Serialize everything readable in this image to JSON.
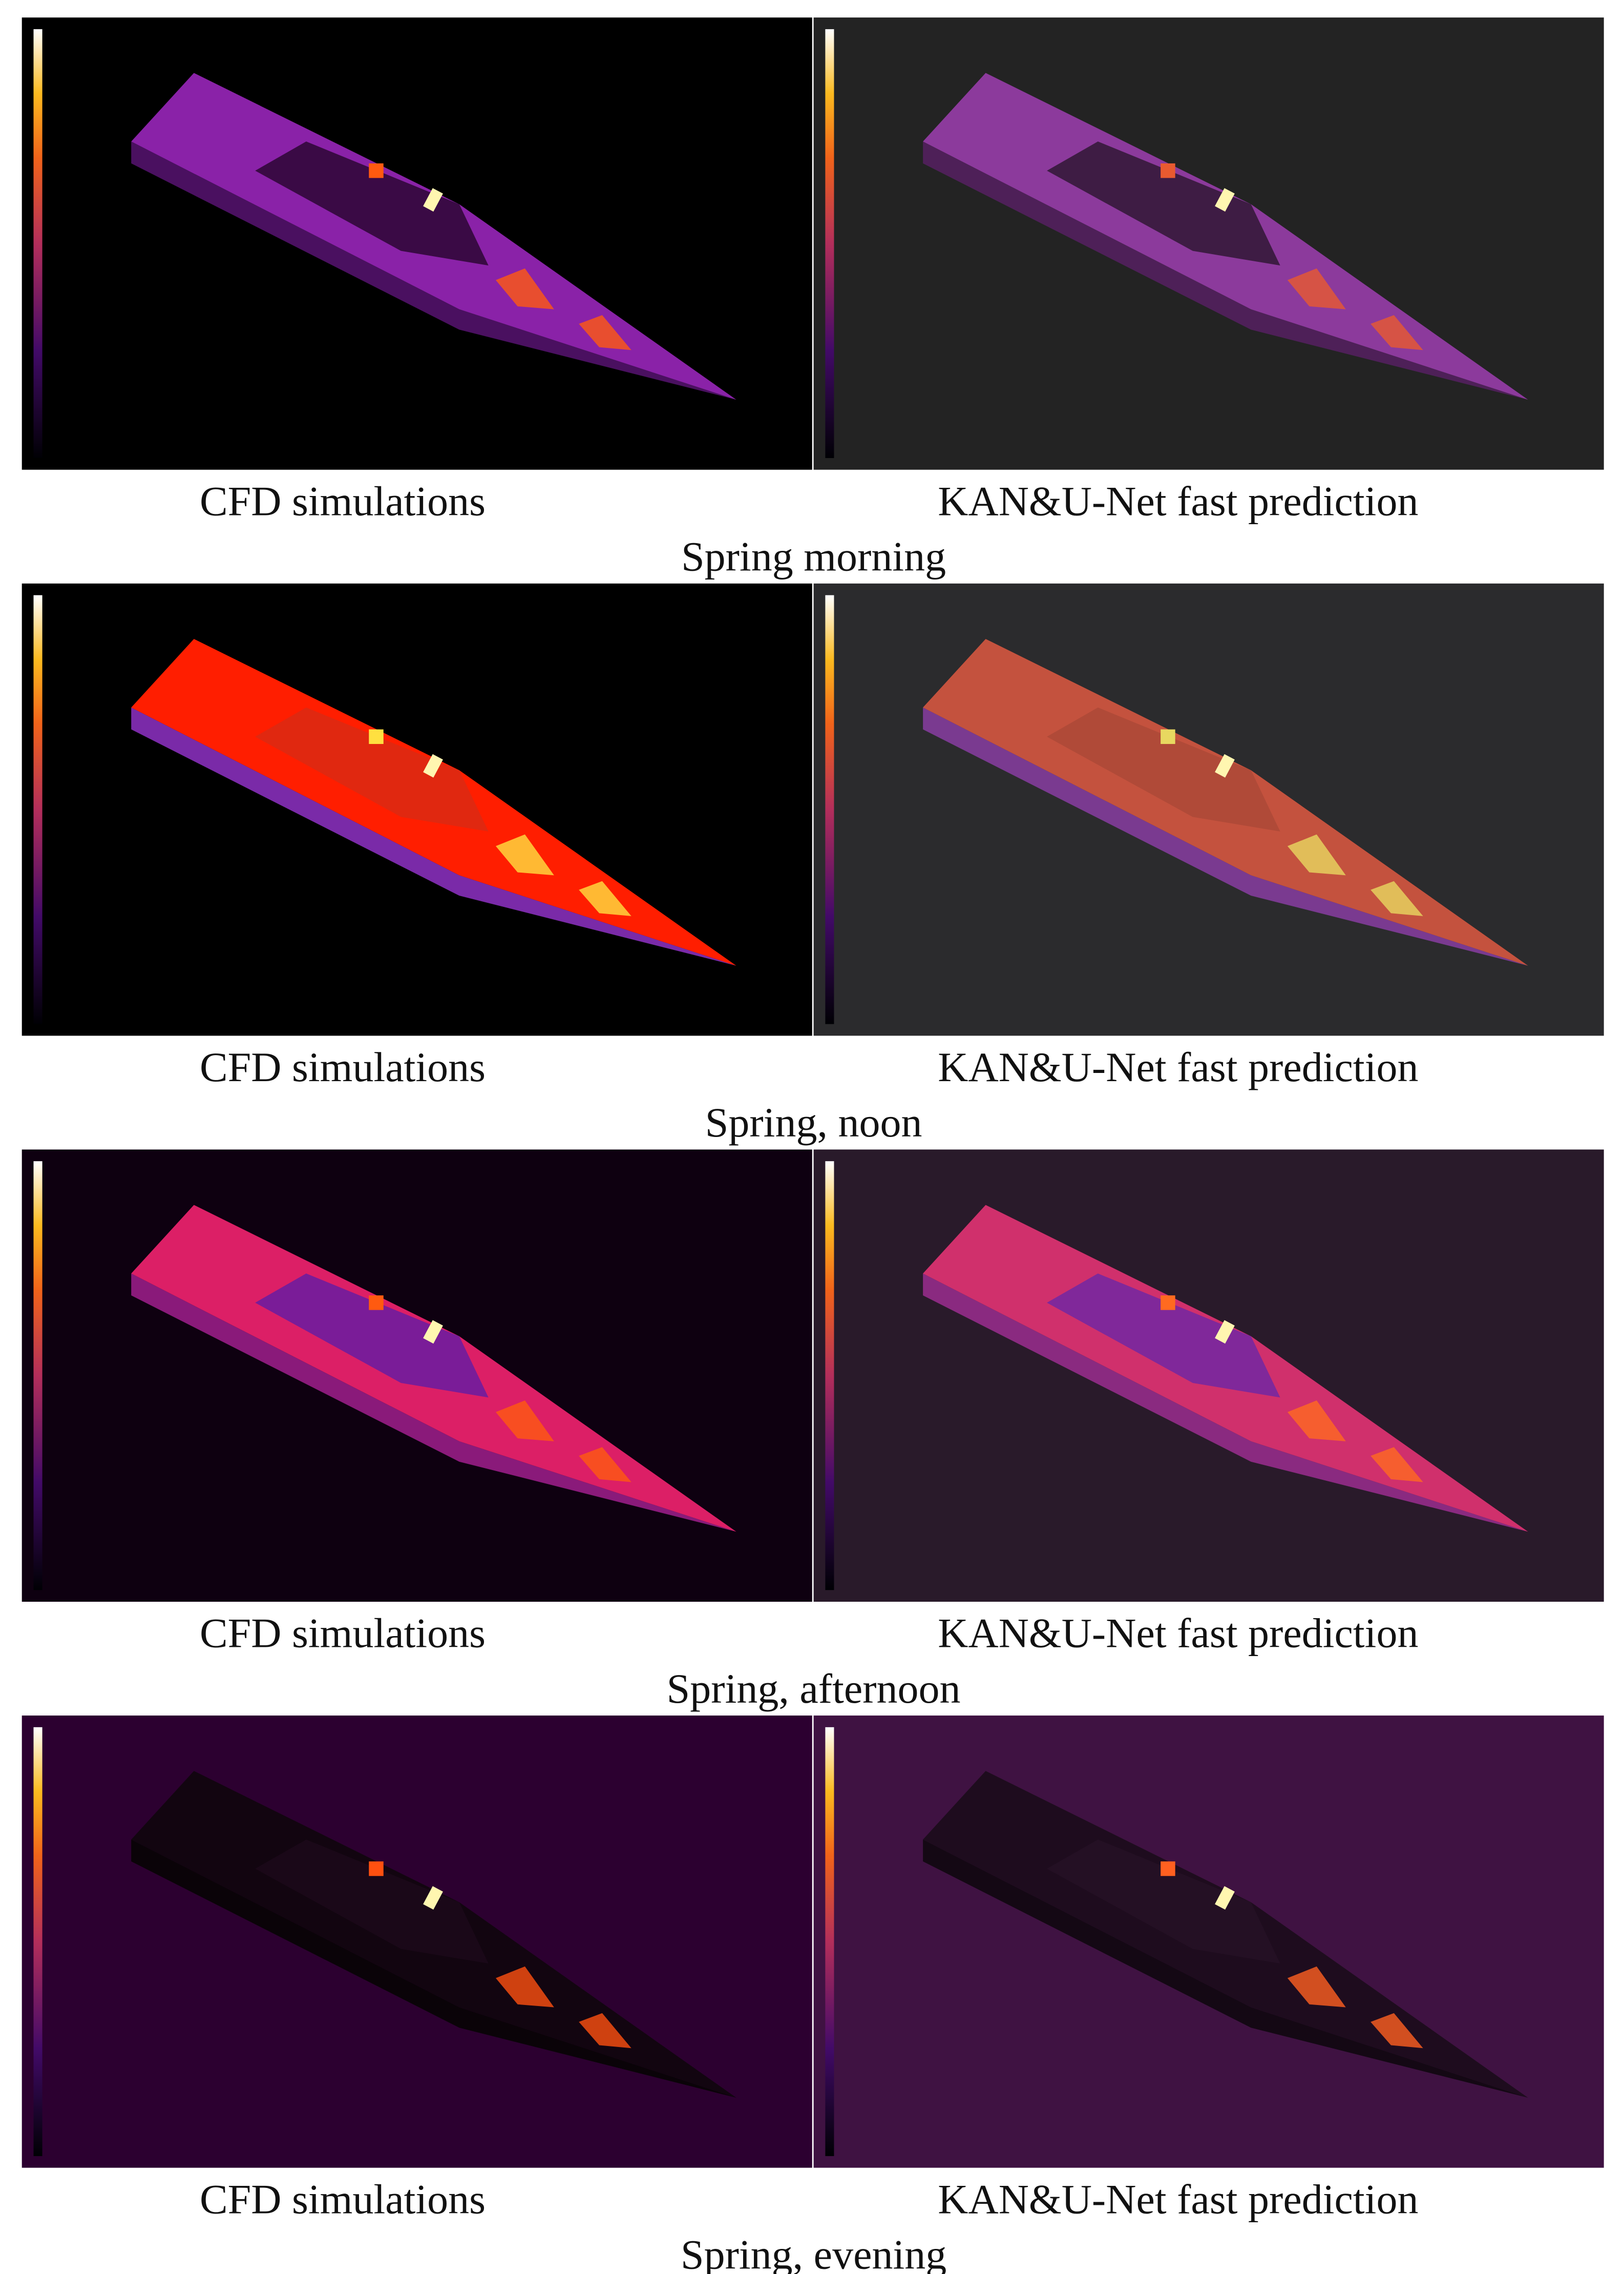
{
  "figure": {
    "rows": [
      {
        "left_caption": "CFD simulations",
        "right_caption": "KAN&U-Net fast prediction",
        "title": "Spring morning"
      },
      {
        "left_caption": "CFD simulations",
        "right_caption": "KAN&U-Net fast prediction",
        "title": "Spring, noon"
      },
      {
        "left_caption": "CFD simulations",
        "right_caption": "KAN&U-Net fast prediction",
        "title": "Spring, afternoon"
      },
      {
        "left_caption": "CFD simulations",
        "right_caption": "KAN&U-Net fast prediction",
        "title": "Spring, evening"
      }
    ]
  }
}
